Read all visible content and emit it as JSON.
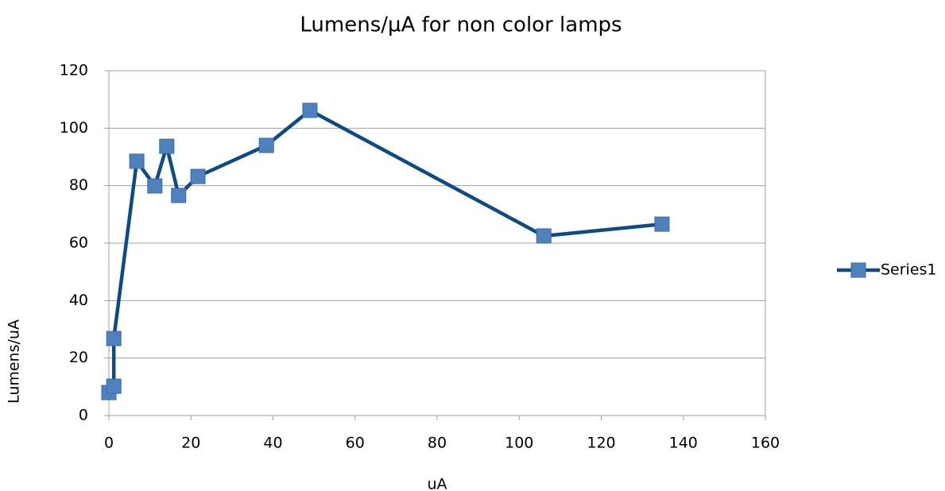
{
  "chart_data": {
    "type": "line",
    "title": "Lumens/µA for non color lamps",
    "x_label": "uA",
    "y_label": "Lumens/uA",
    "xlim": [
      0,
      160
    ],
    "xticks": [
      0,
      20,
      40,
      60,
      80,
      100,
      120,
      140,
      160
    ],
    "ylim": [
      0,
      120
    ],
    "yticks": [
      0,
      20,
      40,
      60,
      80,
      100,
      120
    ],
    "grid": true,
    "legend": "right",
    "series": [
      {
        "name": "Series1",
        "color": "#0e4a84",
        "marker_color": "#4f81bd",
        "x": [
          0,
          1.2,
          1.2,
          6.8,
          11.2,
          14.1,
          17,
          21.7,
          38.4,
          49,
          106,
          134.8
        ],
        "values": [
          8,
          10.2,
          26.8,
          88.5,
          79.9,
          93.7,
          76.6,
          83.2,
          94,
          106.2,
          62.5,
          66.6
        ]
      }
    ]
  }
}
